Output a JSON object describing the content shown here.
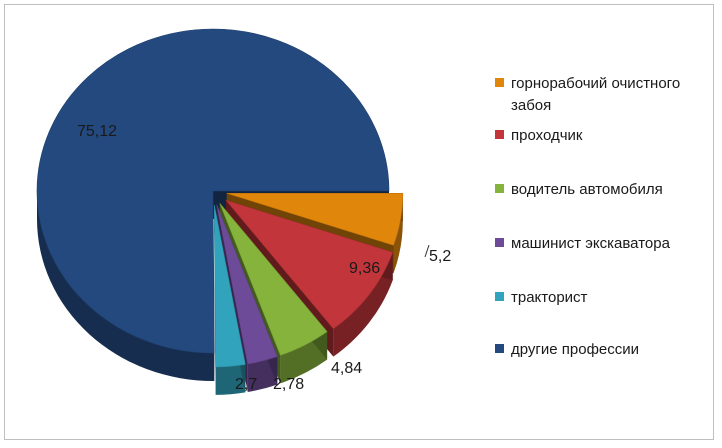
{
  "chart_data": {
    "type": "pie",
    "style": "3d-exploded",
    "title": "",
    "categories": [
      "горнорабочий очистного забоя",
      "проходчик",
      "водитель автомобиля",
      "машинист экскаватора",
      "тракторист",
      "другие профессии"
    ],
    "values": [
      5.2,
      9.36,
      4.84,
      2.78,
      2.7,
      75.12
    ],
    "value_labels": [
      "5,2",
      "9,36",
      "4,84",
      "2,78",
      "2,7",
      "75,12"
    ],
    "colors": [
      "#e0860b",
      "#c2353a",
      "#86b33c",
      "#6e4b99",
      "#31a3bd",
      "#23497f"
    ],
    "legend_position": "right"
  },
  "legend": {
    "items": [
      {
        "label": "горнорабочий очистного\nзабоя",
        "color": "#e0860b"
      },
      {
        "label": "проходчик",
        "color": "#c2353a"
      },
      {
        "label": "водитель автомобиля",
        "color": "#86b33c"
      },
      {
        "label": "машинист экскаватора",
        "color": "#6e4b99"
      },
      {
        "label": "тракторист",
        "color": "#31a3bd"
      },
      {
        "label": "другие профессии",
        "color": "#23497f"
      }
    ]
  }
}
